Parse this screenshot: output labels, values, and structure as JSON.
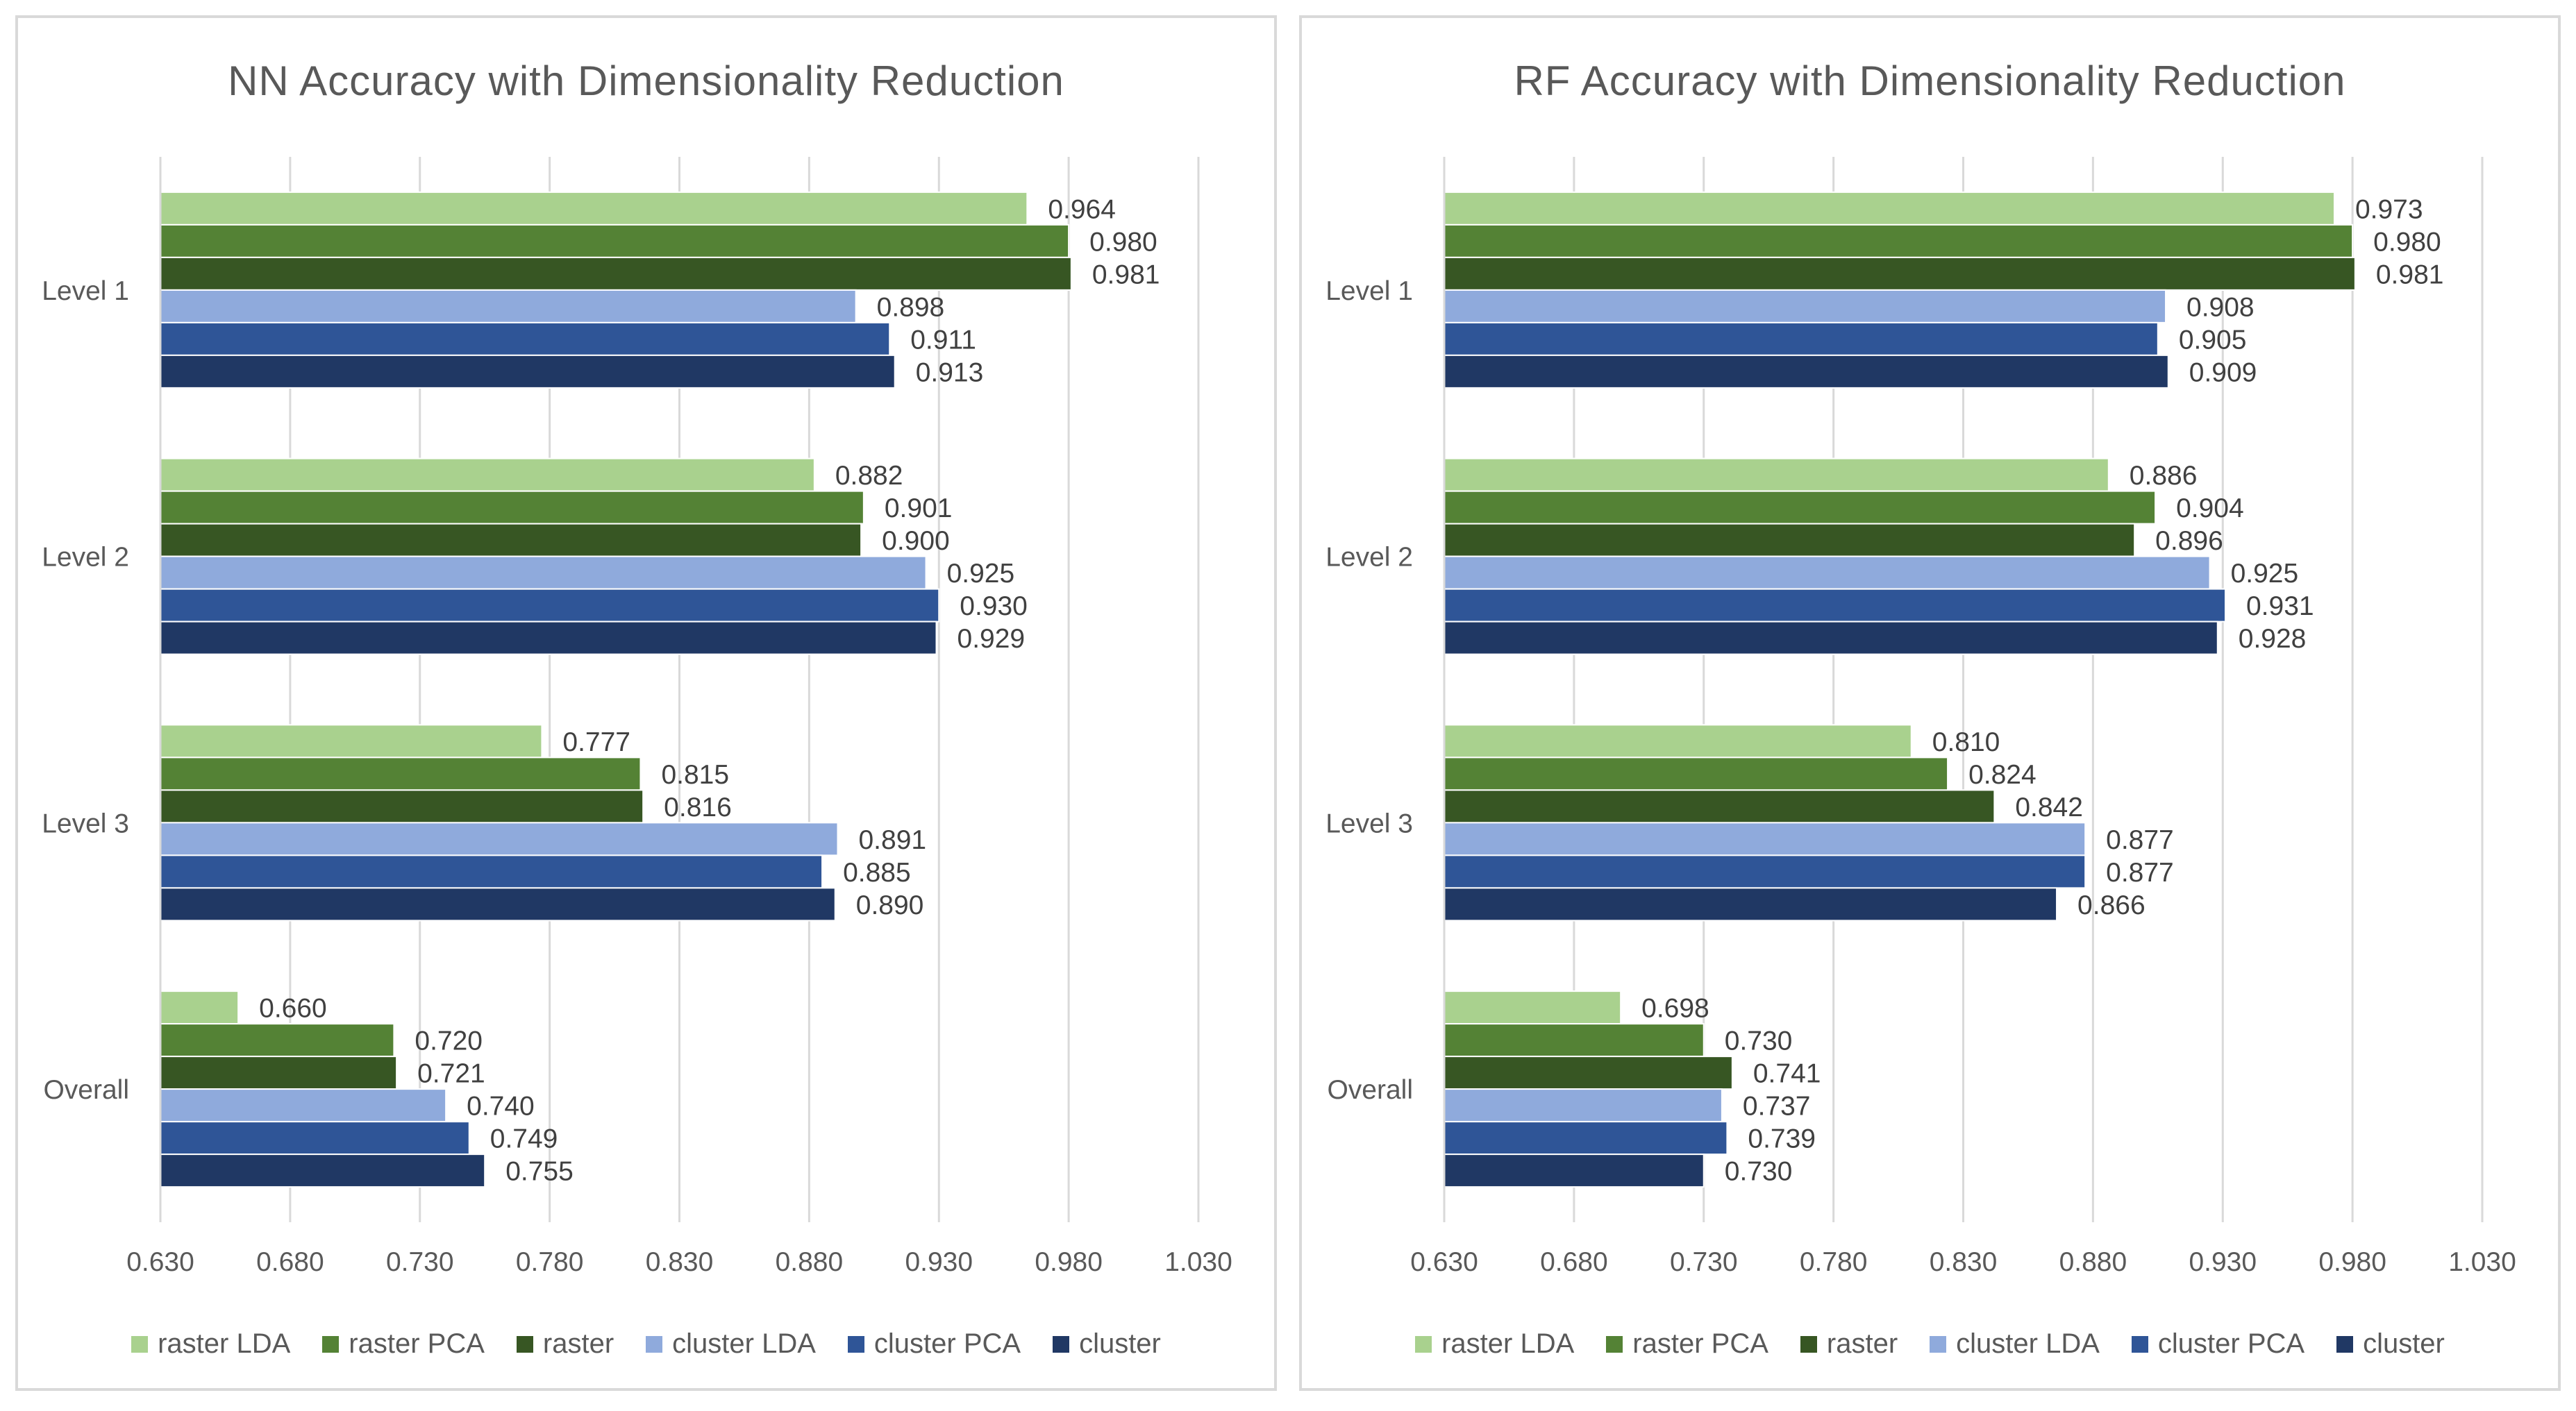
{
  "chart_data": [
    {
      "type": "bar",
      "orientation": "horizontal",
      "title": "NN Accuracy with Dimensionality Reduction",
      "categories": [
        "Level 1",
        "Level 2",
        "Level 3",
        "Overall"
      ],
      "xlim": [
        0.63,
        1.03
      ],
      "xticks": [
        "0.630",
        "0.680",
        "0.730",
        "0.780",
        "0.830",
        "0.880",
        "0.930",
        "0.980",
        "1.030"
      ],
      "xtick_values": [
        0.63,
        0.68,
        0.73,
        0.78,
        0.83,
        0.88,
        0.93,
        0.98,
        1.03
      ],
      "grid": true,
      "legend_position": "bottom",
      "series": [
        {
          "name": "raster LDA",
          "color": "#a9d18e",
          "values": [
            0.964,
            0.882,
            0.777,
            0.66
          ],
          "labels": [
            "0.964",
            "0.882",
            "0.777",
            "0.660"
          ]
        },
        {
          "name": "raster PCA",
          "color": "#548235",
          "values": [
            0.98,
            0.901,
            0.815,
            0.72
          ],
          "labels": [
            "0.980",
            "0.901",
            "0.815",
            "0.720"
          ]
        },
        {
          "name": "raster",
          "color": "#375623",
          "values": [
            0.981,
            0.9,
            0.816,
            0.721
          ],
          "labels": [
            "0.981",
            "0.900",
            "0.816",
            "0.721"
          ]
        },
        {
          "name": "cluster LDA",
          "color": "#8faadc",
          "values": [
            0.898,
            0.925,
            0.891,
            0.74
          ],
          "labels": [
            "0.898",
            "0.925",
            "0.891",
            "0.740"
          ]
        },
        {
          "name": "cluster PCA",
          "color": "#2f5597",
          "values": [
            0.911,
            0.93,
            0.885,
            0.749
          ],
          "labels": [
            "0.911",
            "0.930",
            "0.885",
            "0.749"
          ]
        },
        {
          "name": "cluster",
          "color": "#203864",
          "values": [
            0.913,
            0.929,
            0.89,
            0.755
          ],
          "labels": [
            "0.913",
            "0.929",
            "0.890",
            "0.755"
          ]
        }
      ]
    },
    {
      "type": "bar",
      "orientation": "horizontal",
      "title": "RF Accuracy with Dimensionality Reduction",
      "categories": [
        "Level 1",
        "Level 2",
        "Level 3",
        "Overall"
      ],
      "xlim": [
        0.63,
        1.03
      ],
      "xticks": [
        "0.630",
        "0.680",
        "0.730",
        "0.780",
        "0.830",
        "0.880",
        "0.930",
        "0.980",
        "1.030"
      ],
      "xtick_values": [
        0.63,
        0.68,
        0.73,
        0.78,
        0.83,
        0.88,
        0.93,
        0.98,
        1.03
      ],
      "grid": true,
      "legend_position": "bottom",
      "series": [
        {
          "name": "raster LDA",
          "color": "#a9d18e",
          "values": [
            0.973,
            0.886,
            0.81,
            0.698
          ],
          "labels": [
            "0.973",
            "0.886",
            "0.810",
            "0.698"
          ]
        },
        {
          "name": "raster PCA",
          "color": "#548235",
          "values": [
            0.98,
            0.904,
            0.824,
            0.73
          ],
          "labels": [
            "0.980",
            "0.904",
            "0.824",
            "0.730"
          ]
        },
        {
          "name": "raster",
          "color": "#375623",
          "values": [
            0.981,
            0.896,
            0.842,
            0.741
          ],
          "labels": [
            "0.981",
            "0.896",
            "0.842",
            "0.741"
          ]
        },
        {
          "name": "cluster LDA",
          "color": "#8faadc",
          "values": [
            0.908,
            0.925,
            0.877,
            0.737
          ],
          "labels": [
            "0.908",
            "0.925",
            "0.877",
            "0.737"
          ]
        },
        {
          "name": "cluster PCA",
          "color": "#2f5597",
          "values": [
            0.905,
            0.931,
            0.877,
            0.739
          ],
          "labels": [
            "0.905",
            "0.931",
            "0.877",
            "0.739"
          ]
        },
        {
          "name": "cluster",
          "color": "#203864",
          "values": [
            0.909,
            0.928,
            0.866,
            0.73
          ],
          "labels": [
            "0.909",
            "0.928",
            "0.866",
            "0.730"
          ]
        }
      ]
    }
  ]
}
